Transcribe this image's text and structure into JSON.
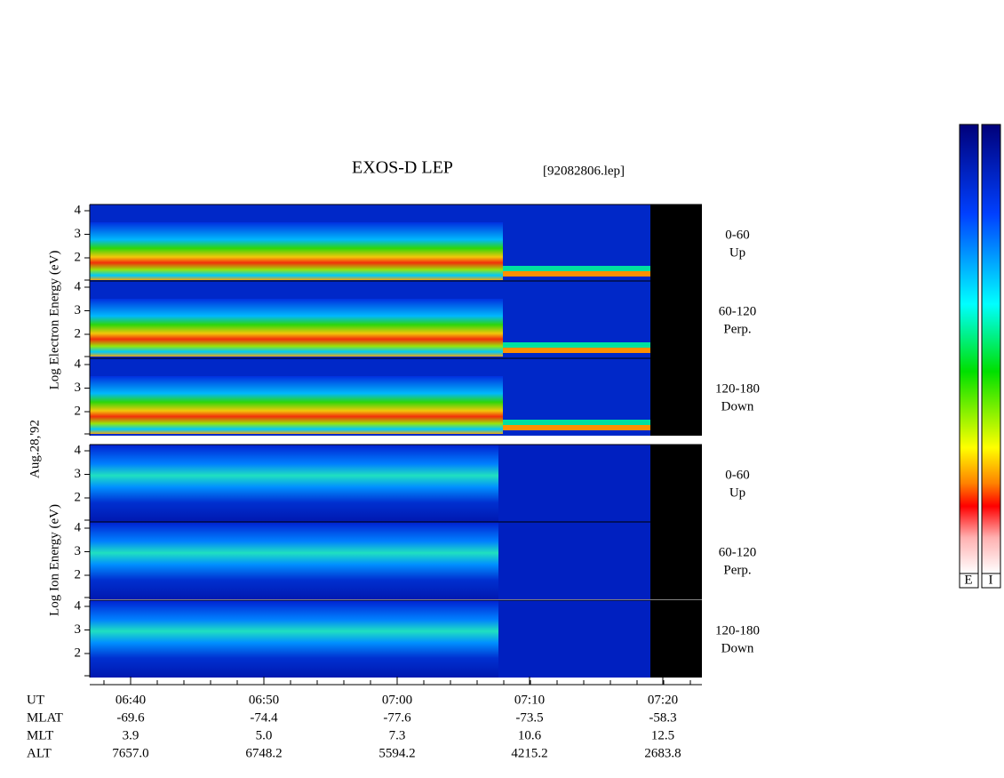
{
  "title": "EXOS-D LEP",
  "file": "[92082806.lep]",
  "date": "Aug.28,'92",
  "yticks": [
    "4",
    "3",
    "2"
  ],
  "electron": {
    "ylabel": "Log  Electron  Energy (eV)",
    "panels": [
      {
        "range": "0-60",
        "dir": "Up"
      },
      {
        "range": "60-120",
        "dir": "Perp."
      },
      {
        "range": "120-180",
        "dir": "Down"
      }
    ]
  },
  "ion": {
    "ylabel": "Log  Ion  Energy (eV)",
    "panels": [
      {
        "range": "0-60",
        "dir": "Up"
      },
      {
        "range": "60-120",
        "dir": "Perp."
      },
      {
        "range": "120-180",
        "dir": "Down"
      }
    ]
  },
  "time_axis": {
    "rows": [
      {
        "label": "UT",
        "values": [
          "06:40",
          "06:50",
          "07:00",
          "07:10",
          "07:20"
        ]
      },
      {
        "label": "MLAT",
        "values": [
          "-69.6",
          "-74.4",
          "-77.6",
          "-73.5",
          "-58.3"
        ]
      },
      {
        "label": "MLT",
        "values": [
          "3.9",
          "5.0",
          "7.3",
          "10.6",
          "12.5"
        ]
      },
      {
        "label": "ALT",
        "values": [
          "7657.0",
          "6748.2",
          "5594.2",
          "4215.2",
          "2683.8"
        ]
      }
    ]
  },
  "colorbar": {
    "labels": [
      "E",
      "I"
    ]
  }
}
